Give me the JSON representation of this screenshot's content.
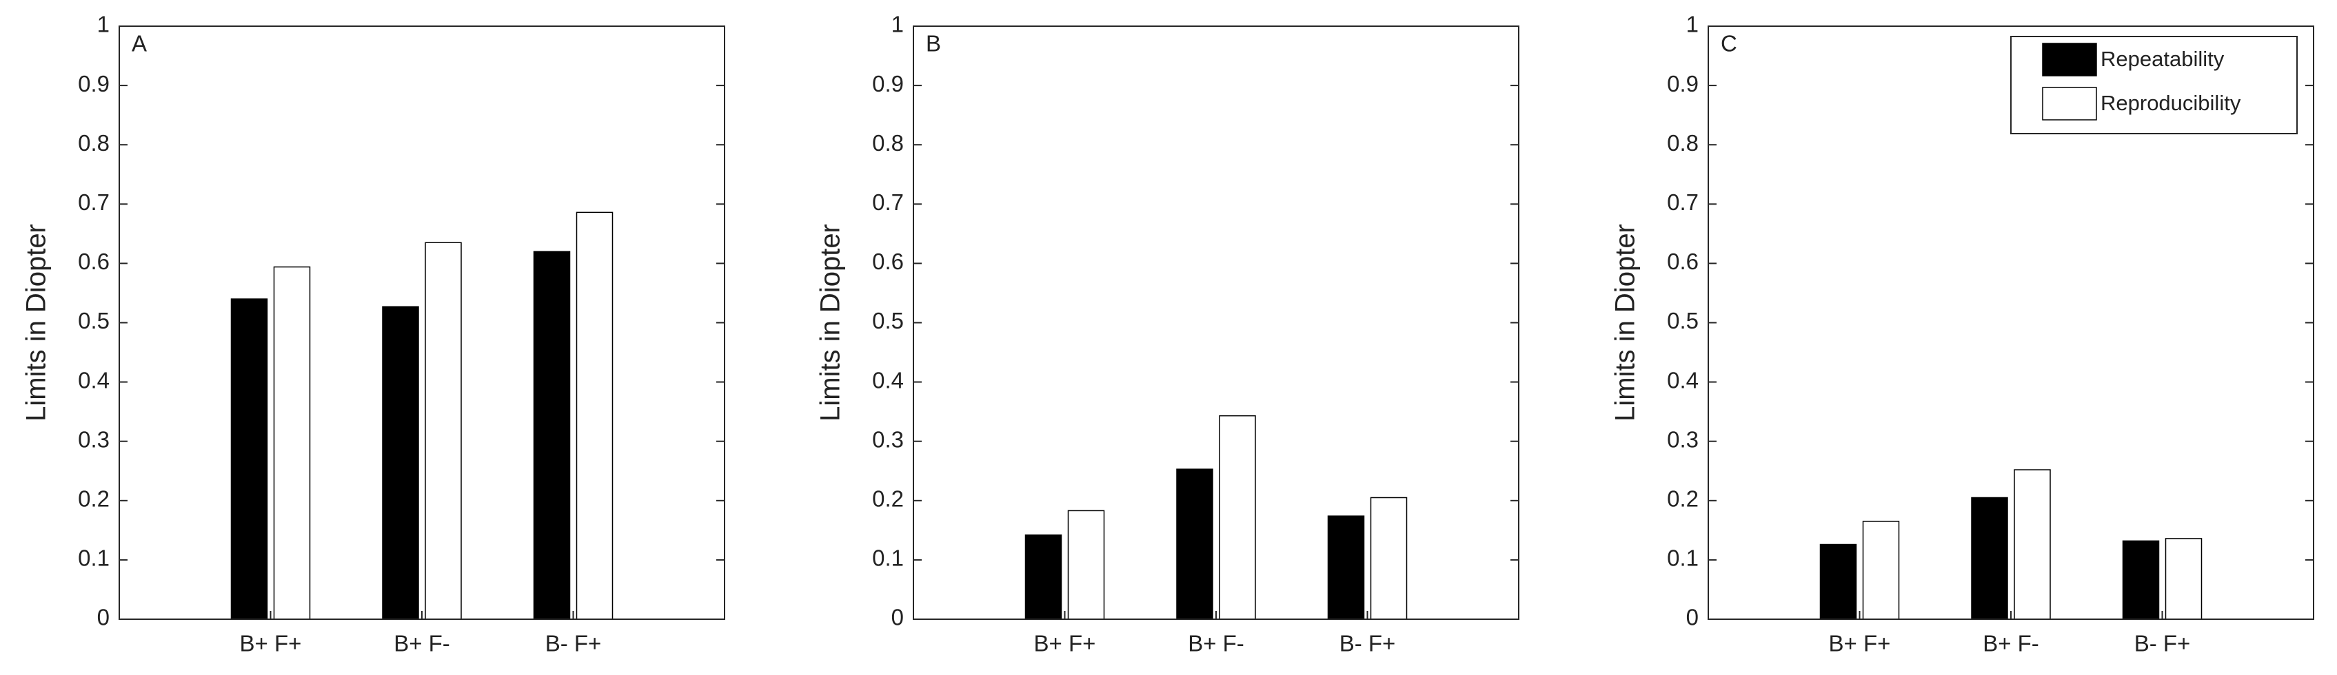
{
  "chart_data": [
    {
      "type": "bar",
      "label": "A",
      "y_label": "Limits in Diopter",
      "categories": [
        "B+ F+",
        "B+ F-",
        "B- F+"
      ],
      "series": [
        {
          "name": "Repeatability",
          "color": "#000000",
          "values": [
            0.54,
            0.527,
            0.62
          ]
        },
        {
          "name": "Reproducibility",
          "color": "#ffffff",
          "values": [
            0.594,
            0.635,
            0.686
          ]
        }
      ],
      "ylim": [
        0,
        1
      ],
      "yticks": [
        0,
        0.1,
        0.2,
        0.3,
        0.4,
        0.5,
        0.6,
        0.7,
        0.8,
        0.9,
        1
      ],
      "legend": false
    },
    {
      "type": "bar",
      "label": "B",
      "y_label": "Limits in Diopter",
      "categories": [
        "B+ F+",
        "B+ F-",
        "B- F+"
      ],
      "series": [
        {
          "name": "Repeatability",
          "color": "#000000",
          "values": [
            0.142,
            0.253,
            0.174
          ]
        },
        {
          "name": "Reproducibility",
          "color": "#ffffff",
          "values": [
            0.183,
            0.343,
            0.205
          ]
        }
      ],
      "ylim": [
        0,
        1
      ],
      "yticks": [
        0,
        0.1,
        0.2,
        0.3,
        0.4,
        0.5,
        0.6,
        0.7,
        0.8,
        0.9,
        1
      ],
      "legend": false
    },
    {
      "type": "bar",
      "label": "C",
      "y_label": "Limits in Diopter",
      "categories": [
        "B+ F+",
        "B+ F-",
        "B- F+"
      ],
      "series": [
        {
          "name": "Repeatability",
          "color": "#000000",
          "values": [
            0.126,
            0.205,
            0.132
          ]
        },
        {
          "name": "Reproducibility",
          "color": "#ffffff",
          "values": [
            0.165,
            0.252,
            0.136
          ]
        }
      ],
      "ylim": [
        0,
        1
      ],
      "yticks": [
        0,
        0.1,
        0.2,
        0.3,
        0.4,
        0.5,
        0.6,
        0.7,
        0.8,
        0.9,
        1
      ],
      "legend": "upper right"
    }
  ]
}
